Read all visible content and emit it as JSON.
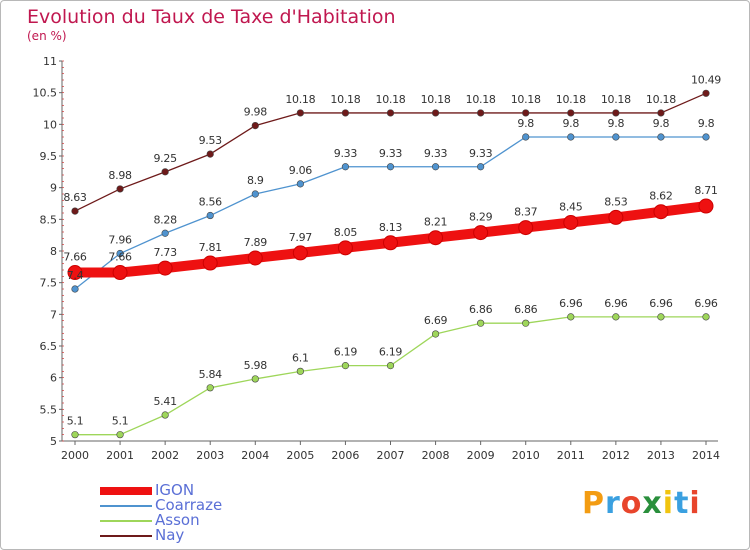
{
  "header": {
    "title": "Evolution du Taux de Taxe d'Habitation",
    "subtitle": "(en %)"
  },
  "logo": {
    "text": "Proxiti",
    "colors": [
      "#f39c12",
      "#3aa0e0",
      "#e8452c",
      "#2a8f3c",
      "#f1c40f",
      "#3aa0e0",
      "#e8452c"
    ]
  },
  "chart_data": {
    "type": "line",
    "x": [
      2000,
      2001,
      2002,
      2003,
      2004,
      2005,
      2006,
      2007,
      2008,
      2009,
      2010,
      2011,
      2012,
      2013,
      2014
    ],
    "ylim": [
      5,
      11
    ],
    "yticks": [
      "5",
      "5.5",
      "6",
      "6.5",
      "7",
      "7.5",
      "8",
      "8.5",
      "9",
      "9.5",
      "10",
      "10.5",
      "11"
    ],
    "grid": false,
    "legend_position": "bottom-left",
    "series": [
      {
        "name": "IGON",
        "color": "#ee1111",
        "values": [
          7.66,
          7.66,
          7.73,
          7.81,
          7.89,
          7.97,
          8.05,
          8.13,
          8.21,
          8.29,
          8.37,
          8.45,
          8.53,
          8.62,
          8.71
        ],
        "labels": [
          "7.66",
          "7.66",
          "7.73",
          "7.81",
          "7.89",
          "7.97",
          "8.05",
          "8.13",
          "8.21",
          "8.29",
          "8.37",
          "8.45",
          "8.53",
          "8.62",
          "8.71"
        ]
      },
      {
        "name": "Coarraze",
        "color": "#4f93cf",
        "values": [
          7.4,
          7.96,
          8.28,
          8.56,
          8.9,
          9.06,
          9.33,
          9.33,
          9.33,
          9.33,
          9.8,
          9.8,
          9.8,
          9.8,
          9.8
        ],
        "labels": [
          "7.4",
          "7.96",
          "8.28",
          "8.56",
          "8.9",
          "9.06",
          "9.33",
          "9.33",
          "9.33",
          "9.33",
          "9.8",
          "9.8",
          "9.8",
          "9.8",
          "9.8"
        ]
      },
      {
        "name": "Asson",
        "color": "#9ed65a",
        "values": [
          5.1,
          5.1,
          5.41,
          5.84,
          5.98,
          6.1,
          6.19,
          6.19,
          6.69,
          6.86,
          6.86,
          6.96,
          6.96,
          6.96,
          6.96
        ],
        "labels": [
          "5.1",
          "5.1",
          "5.41",
          "5.84",
          "5.98",
          "6.1",
          "6.19",
          "6.19",
          "6.69",
          "6.86",
          "6.86",
          "6.96",
          "6.96",
          "6.96",
          "6.96"
        ]
      },
      {
        "name": "Nay",
        "color": "#6e1a1a",
        "values": [
          8.63,
          8.98,
          9.25,
          9.53,
          9.98,
          10.18,
          10.18,
          10.18,
          10.18,
          10.18,
          10.18,
          10.18,
          10.18,
          10.18,
          10.49
        ],
        "labels": [
          "8.63",
          "8.98",
          "9.25",
          "9.53",
          "9.98",
          "10.18",
          "10.18",
          "10.18",
          "10.18",
          "10.18",
          "10.18",
          "10.18",
          "10.18",
          "10.18",
          "10.49"
        ]
      }
    ]
  }
}
